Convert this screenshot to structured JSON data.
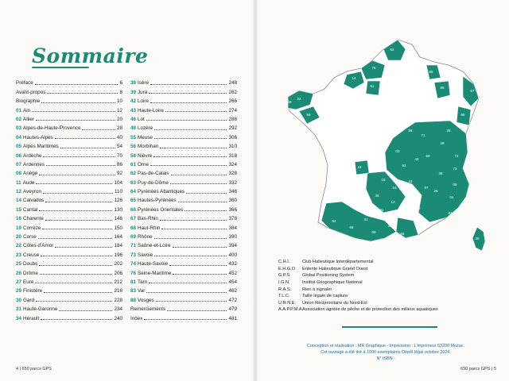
{
  "title": "Sommaire",
  "toc_left": [
    {
      "num": "",
      "label": "Préface",
      "page": "6"
    },
    {
      "num": "",
      "label": "Avant-propos",
      "page": "8"
    },
    {
      "num": "",
      "label": "Biographie",
      "page": "10"
    },
    {
      "num": "01",
      "label": "Ain",
      "page": "12"
    },
    {
      "num": "02",
      "label": "Allier",
      "page": "20"
    },
    {
      "num": "03",
      "label": "Alpes-de-Haute-Provence",
      "page": "28"
    },
    {
      "num": "04",
      "label": "Hautes-Alpes",
      "page": "40"
    },
    {
      "num": "05",
      "label": "Alpes Maritimes",
      "page": "54"
    },
    {
      "num": "06",
      "label": "Ardèche",
      "page": "70"
    },
    {
      "num": "07",
      "label": "Ardennes",
      "page": "86"
    },
    {
      "num": "08",
      "label": "Ariège",
      "page": "92"
    },
    {
      "num": "11",
      "label": "Aude",
      "page": "104"
    },
    {
      "num": "12",
      "label": "Aveyron",
      "page": "110"
    },
    {
      "num": "14",
      "label": "Calvados",
      "page": "126"
    },
    {
      "num": "15",
      "label": "Cantal",
      "page": "130"
    },
    {
      "num": "16",
      "label": "Charente",
      "page": "146"
    },
    {
      "num": "19",
      "label": "Corrèze",
      "page": "150"
    },
    {
      "num": "20",
      "label": "Corse",
      "page": "164"
    },
    {
      "num": "22",
      "label": "Côtes-d'Amor",
      "page": "184"
    },
    {
      "num": "23",
      "label": "Creuse",
      "page": "196"
    },
    {
      "num": "25",
      "label": "Doubs",
      "page": "202"
    },
    {
      "num": "26",
      "label": "Drôme",
      "page": "206"
    },
    {
      "num": "27",
      "label": "Eure",
      "page": "212"
    },
    {
      "num": "29",
      "label": "Finistère",
      "page": "216"
    },
    {
      "num": "30",
      "label": "Gard",
      "page": "228"
    },
    {
      "num": "31",
      "label": "Haute-Garonne",
      "page": "234"
    },
    {
      "num": "34",
      "label": "Hérault",
      "page": "240"
    }
  ],
  "toc_right": [
    {
      "num": "38",
      "label": "Isère",
      "page": "248"
    },
    {
      "num": "39",
      "label": "Jura",
      "page": "262"
    },
    {
      "num": "42",
      "label": "Loire",
      "page": "266"
    },
    {
      "num": "43",
      "label": "Haute-Loire",
      "page": "274"
    },
    {
      "num": "46",
      "label": "Lot",
      "page": "286"
    },
    {
      "num": "48",
      "label": "Lozère",
      "page": "292"
    },
    {
      "num": "55",
      "label": "Meuse",
      "page": "306"
    },
    {
      "num": "56",
      "label": "Morbihan",
      "page": "310"
    },
    {
      "num": "58",
      "label": "Nièvre",
      "page": "318"
    },
    {
      "num": "61",
      "label": "Orne",
      "page": "324"
    },
    {
      "num": "62",
      "label": "Pas-de-Calais",
      "page": "328"
    },
    {
      "num": "63",
      "label": "Puy-de-Dôme",
      "page": "332"
    },
    {
      "num": "64",
      "label": "Pyrénées Atlantiques",
      "page": "346"
    },
    {
      "num": "65",
      "label": "Hautes-Pyrénées",
      "page": "360"
    },
    {
      "num": "66",
      "label": "Pyrénées Orientales",
      "page": "366"
    },
    {
      "num": "67",
      "label": "Bas-Rhin",
      "page": "378"
    },
    {
      "num": "68",
      "label": "Haut-Rhin",
      "page": "384"
    },
    {
      "num": "69",
      "label": "Rhône",
      "page": "390"
    },
    {
      "num": "71",
      "label": "Saône-et-Loire",
      "page": "394"
    },
    {
      "num": "73",
      "label": "Savoie",
      "page": "400"
    },
    {
      "num": "74",
      "label": "Haute-Savoie",
      "page": "432"
    },
    {
      "num": "76",
      "label": "Seine-Maritime",
      "page": "452"
    },
    {
      "num": "81",
      "label": "Tarn",
      "page": "454"
    },
    {
      "num": "83",
      "label": "Var",
      "page": "462"
    },
    {
      "num": "88",
      "label": "Vosges",
      "page": "472"
    },
    {
      "num": "",
      "label": "Remerciements",
      "page": "479"
    },
    {
      "num": "",
      "label": "Index",
      "page": "481"
    }
  ],
  "map_labels": [
    "62",
    "76",
    "14",
    "61",
    "22",
    "29",
    "56",
    "55",
    "88",
    "67",
    "68",
    "25",
    "39",
    "71",
    "58",
    "03",
    "23",
    "19",
    "63",
    "42",
    "69",
    "74",
    "73",
    "38",
    "43",
    "15",
    "46",
    "12",
    "48",
    "07",
    "26",
    "05",
    "04",
    "06",
    "83",
    "30",
    "34",
    "81",
    "31",
    "11",
    "65",
    "64",
    "66",
    "09",
    "16",
    "20"
  ],
  "abbreviations": [
    {
      "k": "C.H.I.",
      "v": "Club Halieutique Interdépartemental"
    },
    {
      "k": "E.H.G.O",
      "v": "Entente Halieutique Grand Ouest"
    },
    {
      "k": "G.P.S.",
      "v": "Global Positioning System"
    },
    {
      "k": "I.G.N.",
      "v": "Institut Géographique National"
    },
    {
      "k": "R.A.S.",
      "v": "Rien à signaler"
    },
    {
      "k": "T.L.C.",
      "v": "Taille légale de capture"
    },
    {
      "k": "U.R.N.E.",
      "v": "Union Réciprocitaire du Nord-Est"
    },
    {
      "k": "A.A.P.P.M.A.",
      "v": "Association agréée de pêche et de protection des milieux aquatiques"
    }
  ],
  "credits": [
    "Conception et réalisation : MR Graphique - Impression : L'imprimeur 63200 Mozac.",
    "Cet ouvrage a été tiré à 1000 exemplaires Dépôt légal octobre 2024.",
    "N° ISBN :"
  ],
  "footer_left": "4 | 650 parcs GPS",
  "footer_right": "650 parcs GPS | 5",
  "colors": {
    "accent": "#1c8b75",
    "credits": "#1c6b9a"
  }
}
